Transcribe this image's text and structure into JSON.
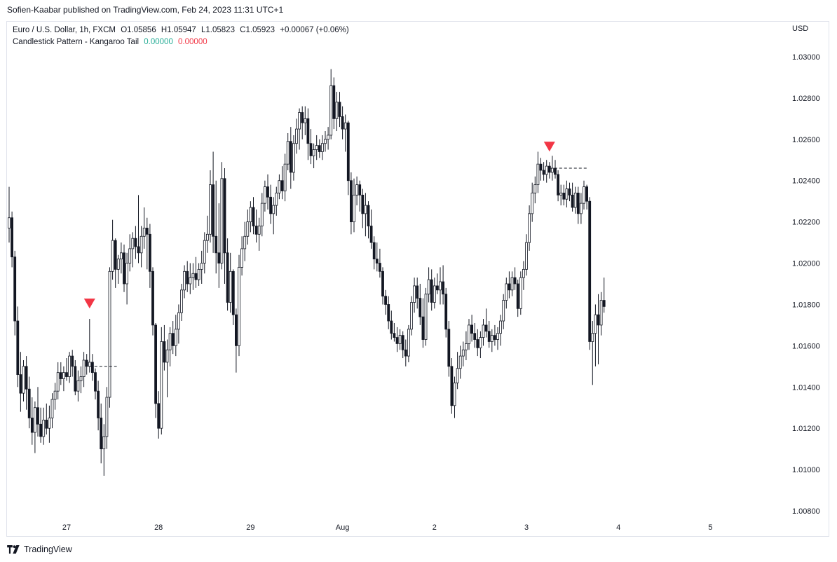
{
  "header": {
    "publish_line": "Sofien-Kaabar published on TradingView.com, Feb 24, 2023 11:31 UTC+1"
  },
  "legend": {
    "symbol": "Euro / U.S. Dollar, 1h, FXCM",
    "open": "O1.05856",
    "high": "H1.05947",
    "low": "L1.05823",
    "close": "C1.05923",
    "change": "+0.00067 (+0.06%)",
    "indicator_name": "Candlestick Pattern - Kangaroo Tail",
    "indicator_value_1": "0.00000",
    "indicator_value_2": "0.00000"
  },
  "axis": {
    "currency": "USD"
  },
  "brand": {
    "name": "TradingView"
  },
  "colors": {
    "up": "#22ab94",
    "down": "#f23645",
    "candle_fill_up": "#ffffff",
    "candle_fill_down": "#131722",
    "marker": "#f23645",
    "grid": "#e0e3eb"
  },
  "chart_data": {
    "type": "candlestick",
    "title": "Euro / U.S. Dollar, 1h, FXCM",
    "ylabel": "USD",
    "ylim": [
      1.0073,
      1.0305
    ],
    "yticks": [
      "1.03000",
      "1.02800",
      "1.02600",
      "1.02400",
      "1.02200",
      "1.02000",
      "1.01800",
      "1.01600",
      "1.01400",
      "1.01200",
      "1.01000",
      "1.00800"
    ],
    "ytick_values": [
      1.03,
      1.028,
      1.026,
      1.024,
      1.022,
      1.02,
      1.018,
      1.016,
      1.014,
      1.012,
      1.01,
      1.008
    ],
    "xticks": [
      {
        "label": "27",
        "index": 20
      },
      {
        "label": "28",
        "index": 52
      },
      {
        "label": "29",
        "index": 84
      },
      {
        "label": "Aug",
        "index": 116
      },
      {
        "label": "2",
        "index": 148
      },
      {
        "label": "3",
        "index": 180
      },
      {
        "label": "4",
        "index": 212
      },
      {
        "label": "5",
        "index": 244
      }
    ],
    "candles": [
      [
        1.0217,
        1.0237,
        1.021,
        1.0222
      ],
      [
        1.0222,
        1.0225,
        1.0198,
        1.0203
      ],
      [
        1.0203,
        1.0206,
        1.0165,
        1.0172
      ],
      [
        1.0172,
        1.0179,
        1.014,
        1.0146
      ],
      [
        1.0146,
        1.0157,
        1.0128,
        1.0137
      ],
      [
        1.0137,
        1.0153,
        1.0133,
        1.015
      ],
      [
        1.015,
        1.0155,
        1.0129,
        1.0139
      ],
      [
        1.0139,
        1.0145,
        1.012,
        1.0125
      ],
      [
        1.0125,
        1.0135,
        1.0112,
        1.0118
      ],
      [
        1.0118,
        1.0133,
        1.0108,
        1.013
      ],
      [
        1.013,
        1.014,
        1.0116,
        1.0122
      ],
      [
        1.0122,
        1.013,
        1.0113,
        1.0116
      ],
      [
        1.0116,
        1.013,
        1.0112,
        1.0124
      ],
      [
        1.0124,
        1.0132,
        1.0117,
        1.012
      ],
      [
        1.012,
        1.0131,
        1.0113,
        1.0125
      ],
      [
        1.0125,
        1.0137,
        1.012,
        1.0134
      ],
      [
        1.0134,
        1.0142,
        1.0129,
        1.0138
      ],
      [
        1.0138,
        1.0152,
        1.0134,
        1.0147
      ],
      [
        1.0147,
        1.0152,
        1.0141,
        1.0144
      ],
      [
        1.0144,
        1.015,
        1.0138,
        1.0147
      ],
      [
        1.0147,
        1.0154,
        1.0143,
        1.0145
      ],
      [
        1.0145,
        1.0157,
        1.0142,
        1.0155
      ],
      [
        1.0155,
        1.0158,
        1.0145,
        1.015
      ],
      [
        1.015,
        1.0153,
        1.0136,
        1.0138
      ],
      [
        1.0138,
        1.0148,
        1.0133,
        1.0143
      ],
      [
        1.0143,
        1.015,
        1.0137,
        1.0145
      ],
      [
        1.0145,
        1.0157,
        1.014,
        1.0153
      ],
      [
        1.0153,
        1.0156,
        1.0146,
        1.015
      ],
      [
        1.015,
        1.0173,
        1.0147,
        1.0152
      ],
      [
        1.0152,
        1.0156,
        1.0143,
        1.0147
      ],
      [
        1.0147,
        1.0149,
        1.0134,
        1.0138
      ],
      [
        1.0138,
        1.0143,
        1.0119,
        1.0125
      ],
      [
        1.0125,
        1.0132,
        1.0103,
        1.011
      ],
      [
        1.011,
        1.0122,
        1.0097,
        1.0116
      ],
      [
        1.0116,
        1.014,
        1.011,
        1.0135
      ],
      [
        1.0135,
        1.0198,
        1.013,
        1.0196
      ],
      [
        1.0196,
        1.0221,
        1.0192,
        1.0211
      ],
      [
        1.0211,
        1.0212,
        1.0188,
        1.0197
      ],
      [
        1.0197,
        1.0204,
        1.019,
        1.0202
      ],
      [
        1.0202,
        1.021,
        1.0195,
        1.0205
      ],
      [
        1.0205,
        1.0209,
        1.0186,
        1.019
      ],
      [
        1.019,
        1.0205,
        1.018,
        1.02
      ],
      [
        1.02,
        1.0214,
        1.0196,
        1.0207
      ],
      [
        1.0207,
        1.0215,
        1.0198,
        1.0212
      ],
      [
        1.0212,
        1.0218,
        1.0202,
        1.0208
      ],
      [
        1.0208,
        1.0233,
        1.02,
        1.0205
      ],
      [
        1.0205,
        1.0218,
        1.0198,
        1.0213
      ],
      [
        1.0213,
        1.0227,
        1.0207,
        1.0217
      ],
      [
        1.0217,
        1.0222,
        1.0197,
        1.0214
      ],
      [
        1.0214,
        1.0219,
        1.0188,
        1.0196
      ],
      [
        1.0196,
        1.0198,
        1.0165,
        1.017
      ],
      [
        1.017,
        1.0171,
        1.0125,
        1.0132
      ],
      [
        1.0132,
        1.0138,
        1.0115,
        1.012
      ],
      [
        1.012,
        1.0169,
        1.0117,
        1.0162
      ],
      [
        1.0162,
        1.017,
        1.0148,
        1.0152
      ],
      [
        1.0152,
        1.0163,
        1.0135,
        1.0158
      ],
      [
        1.0158,
        1.0169,
        1.015,
        1.0166
      ],
      [
        1.0166,
        1.0172,
        1.0156,
        1.016
      ],
      [
        1.016,
        1.0175,
        1.0155,
        1.0168
      ],
      [
        1.0168,
        1.018,
        1.0161,
        1.0176
      ],
      [
        1.0176,
        1.019,
        1.0172,
        1.0187
      ],
      [
        1.0187,
        1.0199,
        1.0183,
        1.0196
      ],
      [
        1.0196,
        1.0201,
        1.0186,
        1.019
      ],
      [
        1.019,
        1.02,
        1.0185,
        1.0193
      ],
      [
        1.0193,
        1.02,
        1.0187,
        1.0195
      ],
      [
        1.0195,
        1.0203,
        1.0188,
        1.0192
      ],
      [
        1.0192,
        1.02,
        1.0189,
        1.0197
      ],
      [
        1.0197,
        1.0206,
        1.019,
        1.02
      ],
      [
        1.02,
        1.0215,
        1.0195,
        1.0211
      ],
      [
        1.0211,
        1.0223,
        1.0205,
        1.0214
      ],
      [
        1.0214,
        1.0245,
        1.021,
        1.0238
      ],
      [
        1.0238,
        1.0254,
        1.0205,
        1.0213
      ],
      [
        1.0213,
        1.024,
        1.0195,
        1.0205
      ],
      [
        1.0205,
        1.0229,
        1.0188,
        1.02
      ],
      [
        1.02,
        1.0249,
        1.0197,
        1.0241
      ],
      [
        1.0241,
        1.0246,
        1.019,
        1.0205
      ],
      [
        1.0205,
        1.0212,
        1.0177,
        1.0181
      ],
      [
        1.0181,
        1.0205,
        1.0176,
        1.0196
      ],
      [
        1.0196,
        1.0197,
        1.017,
        1.0175
      ],
      [
        1.0175,
        1.0178,
        1.0147,
        1.016
      ],
      [
        1.016,
        1.0204,
        1.0155,
        1.0198
      ],
      [
        1.0198,
        1.0213,
        1.0194,
        1.0207
      ],
      [
        1.0207,
        1.022,
        1.0201,
        1.0213
      ],
      [
        1.0213,
        1.0226,
        1.0209,
        1.022
      ],
      [
        1.022,
        1.023,
        1.0215,
        1.0227
      ],
      [
        1.0227,
        1.0232,
        1.0214,
        1.0218
      ],
      [
        1.0218,
        1.0226,
        1.021,
        1.0214
      ],
      [
        1.0214,
        1.0222,
        1.0206,
        1.0218
      ],
      [
        1.0218,
        1.0234,
        1.0213,
        1.0229
      ],
      [
        1.0229,
        1.024,
        1.0225,
        1.0237
      ],
      [
        1.0237,
        1.0243,
        1.0226,
        1.0232
      ],
      [
        1.0232,
        1.0238,
        1.0219,
        1.0224
      ],
      [
        1.0224,
        1.0232,
        1.0214,
        1.0228
      ],
      [
        1.0228,
        1.0237,
        1.0223,
        1.0234
      ],
      [
        1.0234,
        1.0243,
        1.0231,
        1.024
      ],
      [
        1.024,
        1.0247,
        1.0231,
        1.0235
      ],
      [
        1.0235,
        1.0253,
        1.023,
        1.0248
      ],
      [
        1.0248,
        1.0263,
        1.0245,
        1.0259
      ],
      [
        1.0259,
        1.0266,
        1.0236,
        1.0244
      ],
      [
        1.0244,
        1.0262,
        1.024,
        1.0258
      ],
      [
        1.0258,
        1.027,
        1.0253,
        1.0265
      ],
      [
        1.0265,
        1.0275,
        1.0255,
        1.0273
      ],
      [
        1.0273,
        1.0276,
        1.026,
        1.0268
      ],
      [
        1.0268,
        1.0276,
        1.0262,
        1.027
      ],
      [
        1.027,
        1.0275,
        1.025,
        1.0258
      ],
      [
        1.0258,
        1.0265,
        1.0248,
        1.0252
      ],
      [
        1.0252,
        1.0258,
        1.0246,
        1.0255
      ],
      [
        1.0255,
        1.0262,
        1.025,
        1.0257
      ],
      [
        1.0257,
        1.026,
        1.0251,
        1.0254
      ],
      [
        1.0254,
        1.0262,
        1.025,
        1.0258
      ],
      [
        1.0258,
        1.0264,
        1.0254,
        1.026
      ],
      [
        1.026,
        1.0266,
        1.0255,
        1.0262
      ],
      [
        1.0262,
        1.0294,
        1.026,
        1.0286
      ],
      [
        1.0286,
        1.029,
        1.0265,
        1.027
      ],
      [
        1.027,
        1.0283,
        1.0264,
        1.0278
      ],
      [
        1.0278,
        1.0283,
        1.0266,
        1.0271
      ],
      [
        1.0271,
        1.0276,
        1.026,
        1.0265
      ],
      [
        1.0265,
        1.0272,
        1.0254,
        1.0268
      ],
      [
        1.0268,
        1.0269,
        1.0233,
        1.024
      ],
      [
        1.024,
        1.0244,
        1.0214,
        1.022
      ],
      [
        1.022,
        1.0241,
        1.0215,
        1.0233
      ],
      [
        1.0233,
        1.0242,
        1.0228,
        1.0238
      ],
      [
        1.0238,
        1.024,
        1.0225,
        1.0233
      ],
      [
        1.0233,
        1.0236,
        1.0217,
        1.0224
      ],
      [
        1.0224,
        1.0234,
        1.0213,
        1.0228
      ],
      [
        1.0228,
        1.023,
        1.0212,
        1.0218
      ],
      [
        1.0218,
        1.0226,
        1.0207,
        1.021
      ],
      [
        1.021,
        1.0213,
        1.0197,
        1.0202
      ],
      [
        1.0202,
        1.021,
        1.0196,
        1.02
      ],
      [
        1.02,
        1.0207,
        1.0193,
        1.0196
      ],
      [
        1.0196,
        1.0198,
        1.018,
        1.0184
      ],
      [
        1.0184,
        1.0187,
        1.0175,
        1.018
      ],
      [
        1.018,
        1.0184,
        1.0168,
        1.0172
      ],
      [
        1.0172,
        1.0177,
        1.0163,
        1.0166
      ],
      [
        1.0166,
        1.0171,
        1.0162,
        1.0164
      ],
      [
        1.0164,
        1.0169,
        1.0157,
        1.0161
      ],
      [
        1.0161,
        1.0168,
        1.0158,
        1.0165
      ],
      [
        1.0165,
        1.0167,
        1.0154,
        1.0158
      ],
      [
        1.0158,
        1.0163,
        1.015,
        1.0155
      ],
      [
        1.0155,
        1.017,
        1.0152,
        1.0168
      ],
      [
        1.0168,
        1.0184,
        1.0165,
        1.0181
      ],
      [
        1.0181,
        1.0193,
        1.0176,
        1.0189
      ],
      [
        1.0189,
        1.0193,
        1.0178,
        1.0183
      ],
      [
        1.0183,
        1.019,
        1.017,
        1.0174
      ],
      [
        1.0174,
        1.0183,
        1.0159,
        1.0163
      ],
      [
        1.0163,
        1.0188,
        1.016,
        1.0185
      ],
      [
        1.0185,
        1.0198,
        1.0181,
        1.0192
      ],
      [
        1.0192,
        1.0197,
        1.0177,
        1.0181
      ],
      [
        1.0181,
        1.0193,
        1.0178,
        1.0189
      ],
      [
        1.0189,
        1.0195,
        1.0185,
        1.0187
      ],
      [
        1.0187,
        1.0198,
        1.018,
        1.0191
      ],
      [
        1.0191,
        1.0199,
        1.018,
        1.0185
      ],
      [
        1.0185,
        1.0188,
        1.0164,
        1.0168
      ],
      [
        1.0168,
        1.0172,
        1.0145,
        1.015
      ],
      [
        1.015,
        1.0154,
        1.0127,
        1.0131
      ],
      [
        1.0131,
        1.0145,
        1.0125,
        1.0142
      ],
      [
        1.0142,
        1.0157,
        1.0139,
        1.0149
      ],
      [
        1.0149,
        1.016,
        1.0144,
        1.0155
      ],
      [
        1.0155,
        1.0162,
        1.015,
        1.0158
      ],
      [
        1.0158,
        1.0167,
        1.0153,
        1.0161
      ],
      [
        1.0161,
        1.0173,
        1.0158,
        1.017
      ],
      [
        1.017,
        1.0175,
        1.0162,
        1.0166
      ],
      [
        1.0166,
        1.0171,
        1.0159,
        1.0163
      ],
      [
        1.0163,
        1.0168,
        1.0155,
        1.0159
      ],
      [
        1.0159,
        1.0167,
        1.0154,
        1.0164
      ],
      [
        1.0164,
        1.0173,
        1.016,
        1.017
      ],
      [
        1.017,
        1.0178,
        1.0164,
        1.0167
      ],
      [
        1.0167,
        1.0172,
        1.0159,
        1.0162
      ],
      [
        1.0162,
        1.0168,
        1.0157,
        1.0165
      ],
      [
        1.0165,
        1.017,
        1.016,
        1.0163
      ],
      [
        1.0163,
        1.0169,
        1.0158,
        1.0166
      ],
      [
        1.0166,
        1.0175,
        1.016,
        1.0172
      ],
      [
        1.0172,
        1.0185,
        1.0168,
        1.0182
      ],
      [
        1.0182,
        1.0193,
        1.0178,
        1.019
      ],
      [
        1.019,
        1.0196,
        1.0183,
        1.0187
      ],
      [
        1.0187,
        1.0196,
        1.0184,
        1.0193
      ],
      [
        1.0193,
        1.0198,
        1.0187,
        1.019
      ],
      [
        1.019,
        1.0192,
        1.0174,
        1.0178
      ],
      [
        1.0178,
        1.0196,
        1.0175,
        1.0193
      ],
      [
        1.0193,
        1.0201,
        1.0187,
        1.0197
      ],
      [
        1.0197,
        1.0214,
        1.0194,
        1.021
      ],
      [
        1.021,
        1.0228,
        1.0206,
        1.0224
      ],
      [
        1.0224,
        1.0239,
        1.022,
        1.0234
      ],
      [
        1.0234,
        1.0242,
        1.0229,
        1.0238
      ],
      [
        1.0238,
        1.0254,
        1.0234,
        1.0248
      ],
      [
        1.0248,
        1.0251,
        1.024,
        1.0245
      ],
      [
        1.0245,
        1.0249,
        1.024,
        1.0243
      ],
      [
        1.0243,
        1.025,
        1.0239,
        1.0247
      ],
      [
        1.0247,
        1.0249,
        1.0241,
        1.0244
      ],
      [
        1.0244,
        1.0252,
        1.024,
        1.0246
      ],
      [
        1.0246,
        1.025,
        1.0241,
        1.0243
      ],
      [
        1.0243,
        1.0245,
        1.023,
        1.0233
      ],
      [
        1.0233,
        1.0238,
        1.0228,
        1.0234
      ],
      [
        1.0234,
        1.0238,
        1.0228,
        1.0231
      ],
      [
        1.0231,
        1.024,
        1.0227,
        1.0236
      ],
      [
        1.0236,
        1.0239,
        1.023,
        1.0233
      ],
      [
        1.0233,
        1.0239,
        1.0225,
        1.0227
      ],
      [
        1.0227,
        1.0237,
        1.0224,
        1.0234
      ],
      [
        1.0234,
        1.0237,
        1.0219,
        1.0224
      ],
      [
        1.0224,
        1.0234,
        1.0219,
        1.0229
      ],
      [
        1.0229,
        1.024,
        1.0226,
        1.0237
      ],
      [
        1.0237,
        1.0238,
        1.0226,
        1.023
      ],
      [
        1.023,
        1.0232,
        1.0158,
        1.0162
      ],
      [
        1.0162,
        1.0172,
        1.0141,
        1.0166
      ],
      [
        1.0166,
        1.018,
        1.015,
        1.0175
      ],
      [
        1.0175,
        1.0185,
        1.0151,
        1.017
      ],
      [
        1.017,
        1.0186,
        1.0165,
        1.0182
      ],
      [
        1.0182,
        1.0193,
        1.0176,
        1.0179
      ]
    ],
    "signals": [
      {
        "index": 28,
        "type": "bearing",
        "level": 1.015,
        "line_end_index": 36
      },
      {
        "index": 188,
        "type": "bearing",
        "level": 1.0246,
        "line_end_index": 200
      }
    ]
  }
}
